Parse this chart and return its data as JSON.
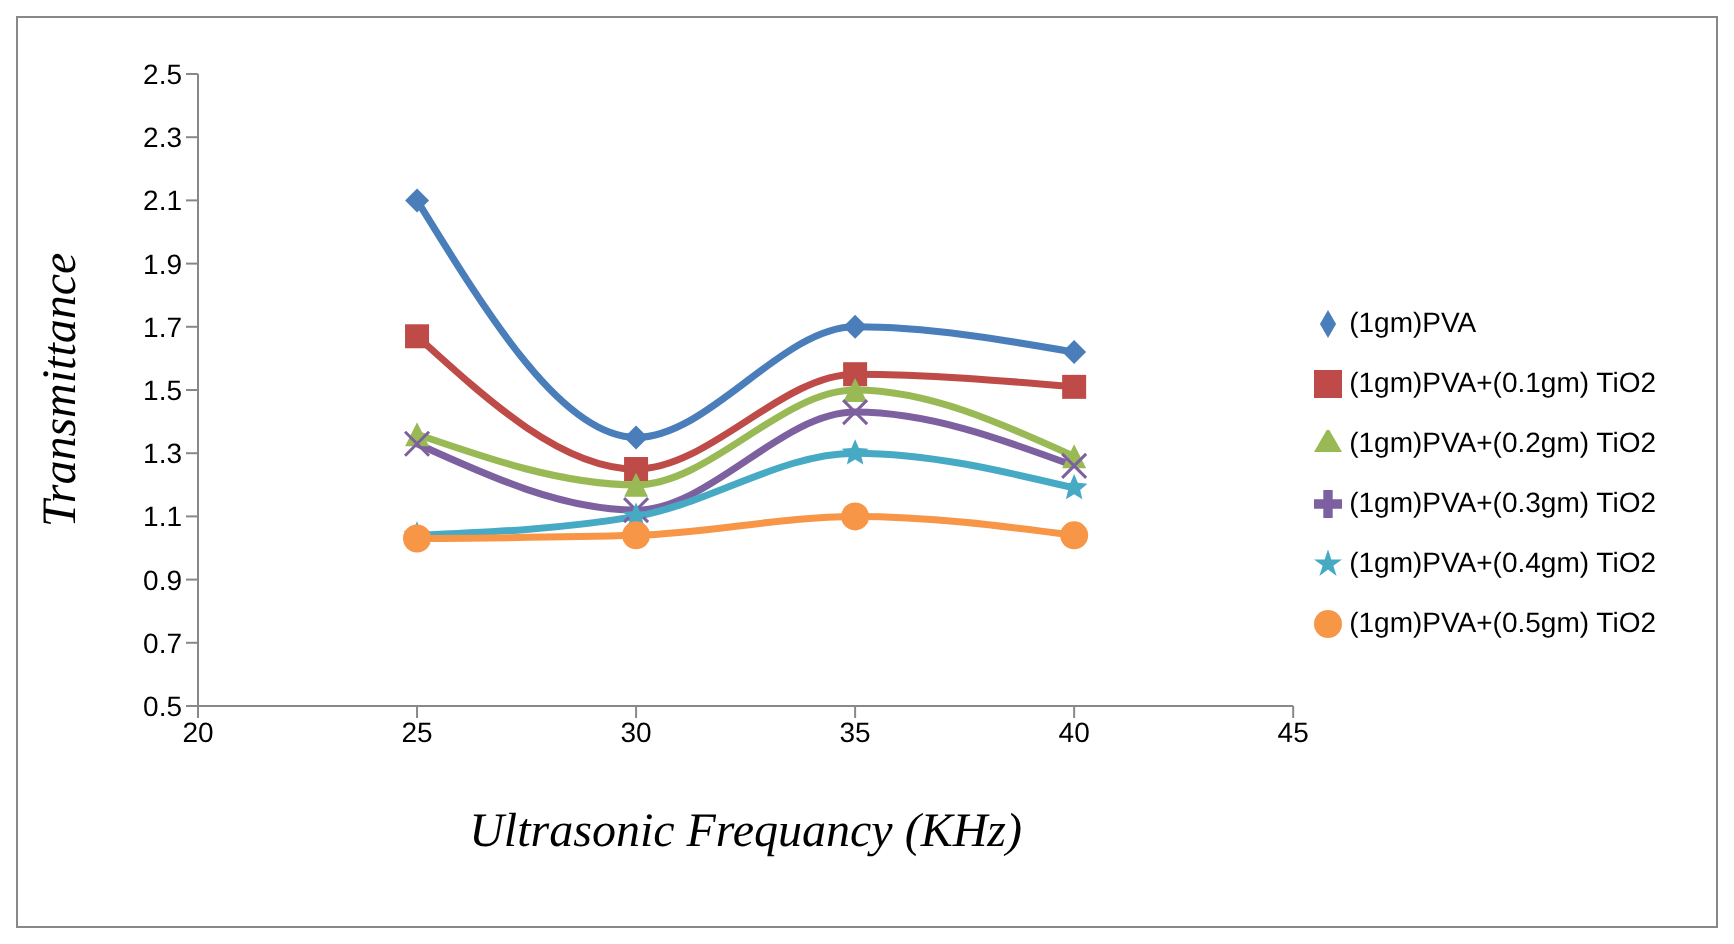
{
  "chart_data": {
    "type": "line",
    "xlabel": "Ultrasonic Frequancy (KHz)",
    "ylabel": "Transmittance",
    "x": [
      25,
      30,
      35,
      40
    ],
    "xlim": [
      20,
      45
    ],
    "xticks": [
      20,
      25,
      30,
      35,
      40,
      45
    ],
    "ylim": [
      0.5,
      2.5
    ],
    "yticks": [
      0.5,
      0.7,
      0.9,
      1.1,
      1.3,
      1.5,
      1.7,
      1.9,
      2.1,
      2.3,
      2.5
    ],
    "grid": false,
    "legend": "right",
    "series": [
      {
        "name": "(1gm)PVA",
        "color": "#4a7ebb",
        "marker": "diamond",
        "values": [
          2.1,
          1.35,
          1.7,
          1.62
        ]
      },
      {
        "name": "(1gm)PVA+(0.1gm) TiO2",
        "color": "#be4b48",
        "marker": "square",
        "values": [
          1.67,
          1.25,
          1.55,
          1.51
        ]
      },
      {
        "name": "(1gm)PVA+(0.2gm) TiO2",
        "color": "#98b954",
        "marker": "triangle",
        "values": [
          1.36,
          1.2,
          1.5,
          1.29
        ]
      },
      {
        "name": "(1gm)PVA+(0.3gm) TiO2",
        "color": "#7d60a0",
        "marker": "cross",
        "values": [
          1.33,
          1.12,
          1.43,
          1.26
        ]
      },
      {
        "name": "(1gm)PVA+(0.4gm) TiO2",
        "color": "#46aac5",
        "marker": "star",
        "values": [
          1.04,
          1.1,
          1.3,
          1.19
        ]
      },
      {
        "name": "(1gm)PVA+(0.5gm) TiO2",
        "color": "#f79646",
        "marker": "circle",
        "values": [
          1.03,
          1.04,
          1.1,
          1.04
        ]
      }
    ]
  }
}
